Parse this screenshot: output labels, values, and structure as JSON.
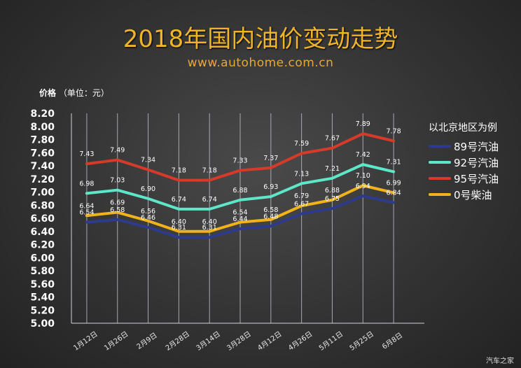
{
  "title": "2018年国内油价变动走势",
  "subtitle": "www.autohome.com.cn",
  "watermark": "汽车之家",
  "chart_data": {
    "type": "line",
    "title": "2018年国内油价变动走势",
    "ylabel_main": "价格",
    "ylabel_unit": "（单位：元）",
    "categories": [
      "1月12日",
      "1月26日",
      "2月9日",
      "2月28日",
      "3月14日",
      "3月28日",
      "4月12日",
      "4月26日",
      "5月11日",
      "5月25日",
      "6月8日"
    ],
    "ylim": [
      5.0,
      8.2
    ],
    "yticks": [
      "5.00",
      "5.20",
      "5.40",
      "5.60",
      "5.80",
      "6.00",
      "6.20",
      "6.40",
      "6.60",
      "6.80",
      "7.00",
      "7.20",
      "7.40",
      "7.60",
      "7.80",
      "8.00",
      "8.20"
    ],
    "legend_title": "以北京地区为例",
    "legend_position": "right",
    "grid": "vertical",
    "series": [
      {
        "name": "89号汽油",
        "color": "#2e3b8c",
        "values": [
          6.54,
          6.58,
          6.46,
          6.31,
          6.31,
          6.44,
          6.48,
          6.67,
          6.75,
          6.94,
          6.84
        ],
        "labels": [
          "6.54",
          "6.58",
          "6.46",
          "6.31",
          "6.31",
          "6.44",
          "6.48",
          "6.67",
          "6.75",
          "6.94",
          "6.84"
        ]
      },
      {
        "name": "92号汽油",
        "color": "#5ee6c8",
        "values": [
          6.98,
          7.03,
          6.9,
          6.74,
          6.74,
          6.88,
          6.93,
          7.13,
          7.21,
          7.42,
          7.31
        ],
        "labels": [
          "6.98",
          "7.03",
          "6.90",
          "6.74",
          "6.74",
          "6.88",
          "6.93",
          "7.13",
          "7.21",
          "7.42",
          "7.31"
        ]
      },
      {
        "name": "95号汽油",
        "color": "#d63b2a",
        "values": [
          7.43,
          7.49,
          7.34,
          7.18,
          7.18,
          7.33,
          7.37,
          7.59,
          7.67,
          7.89,
          7.78
        ],
        "labels": [
          "7.43",
          "7.49",
          "7.34",
          "7.18",
          "7.18",
          "7.33",
          "7.37",
          "7.59",
          "7.67",
          "7.89",
          "7.78"
        ]
      },
      {
        "name": "0号柴油",
        "color": "#f2b21c",
        "values": [
          6.64,
          6.69,
          6.56,
          6.4,
          6.4,
          6.54,
          6.58,
          6.79,
          6.88,
          7.1,
          6.99
        ],
        "labels": [
          "6.64",
          "6.69",
          "6.56",
          "6.40",
          "6.40",
          "6.54",
          "6.58",
          "6.79",
          "6.88",
          "7.10",
          "6.99"
        ]
      }
    ]
  }
}
